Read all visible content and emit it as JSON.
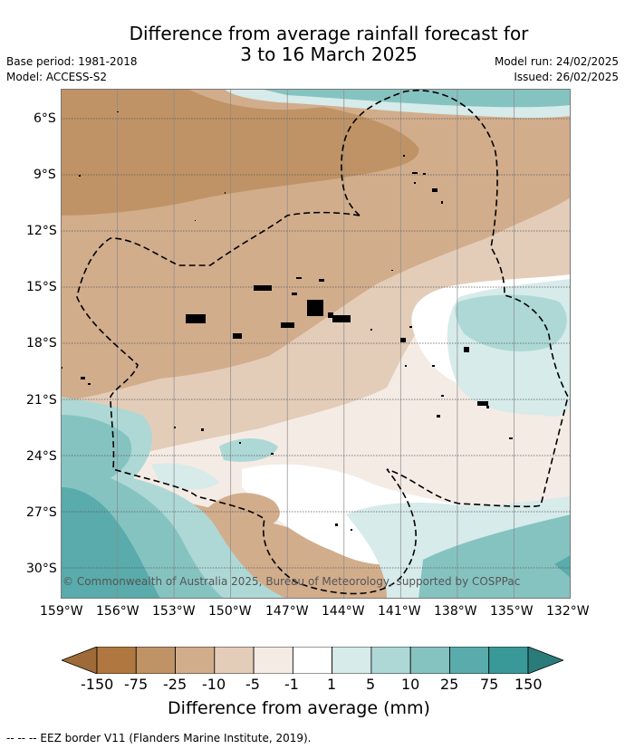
{
  "title": {
    "line1": "Difference from average rainfall forecast for",
    "line2": "3 to 16 March 2025"
  },
  "meta": {
    "base_period": "Base period: 1981-2018",
    "model": "Model: ACCESS-S2",
    "model_run": "Model run: 24/02/2025",
    "issued": "Issued: 26/02/2025"
  },
  "map": {
    "lat_ticks": [
      "6°S",
      "9°S",
      "12°S",
      "15°S",
      "18°S",
      "21°S",
      "24°S",
      "27°S",
      "30°S"
    ],
    "lon_ticks": [
      "159°W",
      "156°W",
      "153°W",
      "150°W",
      "147°W",
      "144°W",
      "141°W",
      "138°W",
      "135°W",
      "132°W"
    ],
    "copyright": "© Commonwealth of Australia 2025, Bureau of Meteorology, supported by COSPPac"
  },
  "colorbar": {
    "labels": [
      "-150",
      "-75",
      "-25",
      "-10",
      "-5",
      "-1",
      "1",
      "5",
      "10",
      "25",
      "75",
      "150"
    ],
    "colors": [
      "#9e6a38",
      "#b07840",
      "#c09366",
      "#d2ad8c",
      "#e3cdb9",
      "#f4ebe4",
      "#ffffff",
      "#d6ebea",
      "#add8d6",
      "#85c3c1",
      "#5aabab",
      "#399998",
      "#2a7c7a"
    ],
    "title": "Difference from average (mm)"
  },
  "footer": {
    "eez": "--  --  -- EEZ border V11 (Flanders Marine Institute, 2019)."
  }
}
